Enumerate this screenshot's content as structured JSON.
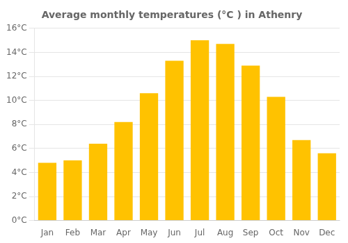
{
  "chart_data": {
    "type": "bar",
    "title": "Average monthly temperatures (°C ) in Athenry",
    "categories": [
      "Jan",
      "Feb",
      "Mar",
      "Apr",
      "May",
      "Jun",
      "Jul",
      "Aug",
      "Sep",
      "Oct",
      "Nov",
      "Dec"
    ],
    "values": [
      4.8,
      5.0,
      6.4,
      8.2,
      10.6,
      13.3,
      15.0,
      14.7,
      12.9,
      10.3,
      6.7,
      5.6
    ],
    "color": "#FFC200",
    "ylim": [
      0,
      16
    ],
    "yticks": [
      {
        "value": 0,
        "label": "0°C"
      },
      {
        "value": 2,
        "label": "2°C"
      },
      {
        "value": 4,
        "label": "4°C"
      },
      {
        "value": 6,
        "label": "6°C"
      },
      {
        "value": 8,
        "label": "8°C"
      },
      {
        "value": 10,
        "label": "10°C"
      },
      {
        "value": 12,
        "label": "12°C"
      },
      {
        "value": 14,
        "label": "14°C"
      },
      {
        "value": 16,
        "label": "16°C"
      }
    ],
    "grid": true
  }
}
